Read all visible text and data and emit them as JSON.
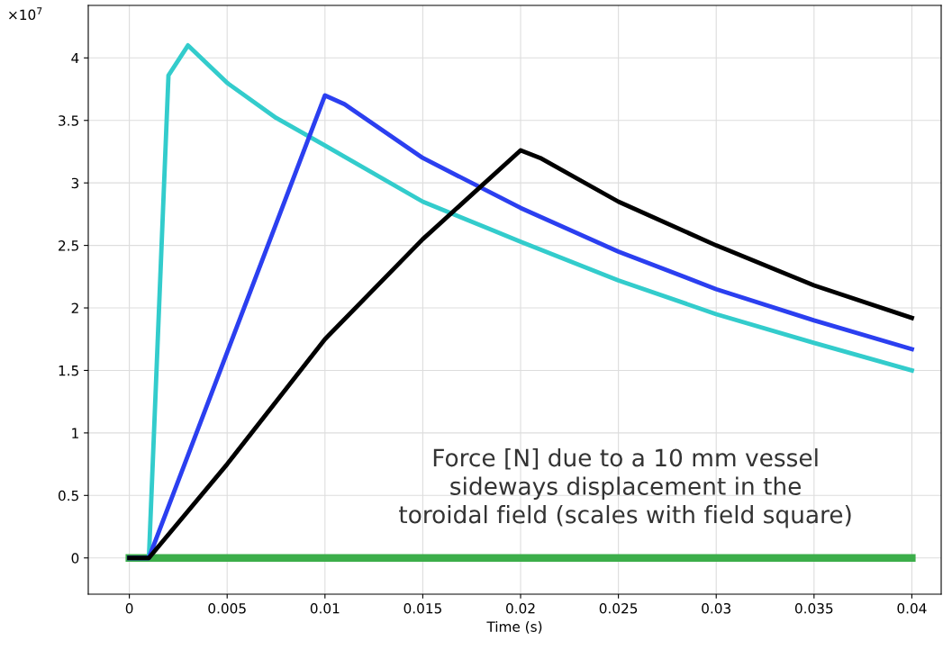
{
  "chart_data": {
    "type": "line",
    "xlabel": "Time (s)",
    "annotations": [
      "×10$^{7}$",
      "Force [N] due to a 10 mm vessel\nsideways displacement in the\ntoroidal field (scales with field square)"
    ],
    "xlim": [
      -0.0021,
      0.0415
    ],
    "xticks": [
      0,
      0.005,
      0.01,
      0.015,
      0.02,
      0.025,
      0.03,
      0.035,
      0.04
    ],
    "ylim": [
      -0.29,
      4.42
    ],
    "yticks": [
      0,
      0.5,
      1,
      1.5,
      2,
      2.5,
      3,
      3.5,
      4
    ],
    "grid": true,
    "marker": "none",
    "line_style": "solid",
    "series": [
      {
        "color": "#3cae4a",
        "x": [
          0,
          0.04
        ],
        "values": [
          0,
          0
        ]
      },
      {
        "color": "#33cccc",
        "x": [
          0,
          0.001,
          0.002,
          0.003,
          0.005,
          0.0075,
          0.01,
          0.015,
          0.02,
          0.025,
          0.03,
          0.035,
          0.04
        ],
        "values": [
          0,
          0,
          3.86,
          4.1,
          3.8,
          3.52,
          3.3,
          2.85,
          2.53,
          2.22,
          1.95,
          1.72,
          1.5
        ]
      },
      {
        "color": "#2b3ff0",
        "x": [
          0,
          0.001,
          0.01,
          0.011,
          0.015,
          0.02,
          0.025,
          0.03,
          0.035,
          0.04
        ],
        "values": [
          0,
          0,
          3.7,
          3.63,
          3.2,
          2.8,
          2.45,
          2.15,
          1.9,
          1.67
        ]
      },
      {
        "color": "#000000",
        "x": [
          0,
          0.001,
          0.005,
          0.01,
          0.015,
          0.02,
          0.021,
          0.025,
          0.03,
          0.035,
          0.04
        ],
        "values": [
          0,
          0,
          0.75,
          1.75,
          2.55,
          3.26,
          3.2,
          2.85,
          2.5,
          2.18,
          1.92
        ]
      }
    ]
  }
}
